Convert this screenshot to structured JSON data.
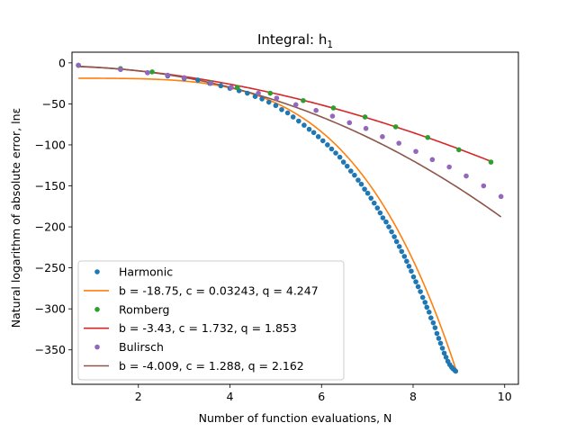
{
  "chart_data": {
    "type": "scatter",
    "title": "Integral: h",
    "title_subscript": "1",
    "xlabel": "Number of function evaluations, N",
    "ylabel": "Natural logarithm of absolute error, lnε",
    "xlim": [
      0.55,
      10.3
    ],
    "ylim": [
      -392,
      13
    ],
    "xticks": [
      2,
      4,
      6,
      8,
      10
    ],
    "yticks": [
      0,
      -50,
      -100,
      -150,
      -200,
      -250,
      -300,
      -350
    ],
    "grid": false,
    "legend_position": "lower-left",
    "series": [
      {
        "name": "Harmonic",
        "kind": "points",
        "color": "#1f77b4",
        "x": [
          0.69,
          1.61,
          2.2,
          2.64,
          3.0,
          3.3,
          3.56,
          3.8,
          4.0,
          4.2,
          4.38,
          4.55,
          4.7,
          4.85,
          5.0,
          5.13,
          5.26,
          5.38,
          5.5,
          5.62,
          5.73,
          5.83,
          5.93,
          6.03,
          6.13,
          6.22,
          6.31,
          6.4,
          6.48,
          6.56,
          6.64,
          6.72,
          6.8,
          6.87,
          6.94,
          7.01,
          7.08,
          7.15,
          7.22,
          7.28,
          7.34,
          7.41,
          7.47,
          7.53,
          7.59,
          7.64,
          7.7,
          7.75,
          7.81,
          7.86,
          7.91,
          7.96,
          8.01,
          8.06,
          8.11,
          8.16,
          8.21,
          8.26,
          8.3,
          8.35,
          8.39,
          8.44,
          8.48,
          8.52,
          8.56,
          8.6,
          8.64,
          8.68,
          8.72,
          8.76,
          8.8,
          8.84,
          8.87,
          8.91,
          8.93
        ],
        "y": [
          -3,
          -8,
          -12,
          -16,
          -19,
          -21,
          -25,
          -28,
          -31,
          -34,
          -37,
          -41,
          -44,
          -48,
          -52,
          -57,
          -61,
          -66,
          -71,
          -76,
          -81,
          -85,
          -90,
          -95,
          -100,
          -105,
          -110,
          -115,
          -121,
          -126,
          -132,
          -137,
          -143,
          -148,
          -154,
          -159,
          -165,
          -171,
          -177,
          -183,
          -189,
          -194,
          -200,
          -206,
          -212,
          -218,
          -224,
          -230,
          -236,
          -242,
          -248,
          -254,
          -261,
          -267,
          -273,
          -279,
          -286,
          -292,
          -298,
          -304,
          -311,
          -317,
          -323,
          -330,
          -336,
          -342,
          -348,
          -354,
          -359,
          -364,
          -368,
          -371,
          -373,
          -375,
          -376
        ]
      },
      {
        "name": "b = -18.75, c = 0.03243, q = 4.247",
        "kind": "line",
        "color": "#ff7f0e",
        "b": -18.75,
        "c": 0.03243,
        "q": 4.247,
        "x_range": [
          0.69,
          8.93
        ]
      },
      {
        "name": "Romberg",
        "kind": "points",
        "color": "#2ca02c",
        "x": [
          0.69,
          1.61,
          2.3,
          3.58,
          4.16,
          4.88,
          5.6,
          6.26,
          6.95,
          7.62,
          8.32,
          9.0,
          9.7
        ],
        "y": [
          -3,
          -7,
          -11,
          -24,
          -30,
          -37,
          -46,
          -55,
          -66,
          -78,
          -91,
          -106,
          -121
        ]
      },
      {
        "name": "b = -3.43, c = 1.732, q = 1.853",
        "kind": "line",
        "color": "#d62728",
        "b": -3.43,
        "c": 1.732,
        "q": 1.853,
        "x_range": [
          0.69,
          9.7
        ]
      },
      {
        "name": "Bulirsch",
        "kind": "points",
        "color": "#9467bd",
        "x": [
          0.69,
          1.61,
          2.2,
          2.64,
          3.0,
          3.58,
          4.03,
          4.62,
          5.02,
          5.44,
          5.88,
          6.24,
          6.61,
          6.97,
          7.33,
          7.69,
          8.06,
          8.42,
          8.79,
          9.16,
          9.54,
          9.92
        ],
        "y": [
          -3,
          -8,
          -12,
          -15,
          -18,
          -25,
          -30,
          -37,
          -43,
          -51,
          -58,
          -65,
          -73,
          -80,
          -90,
          -98,
          -108,
          -118,
          -127,
          -138,
          -150,
          -163
        ]
      },
      {
        "name": "b = -4.009, c = 1.288, q = 2.162",
        "kind": "line",
        "color": "#8c564b",
        "b": -4.009,
        "c": 1.288,
        "q": 2.162,
        "x_range": [
          0.69,
          9.92
        ]
      }
    ]
  }
}
